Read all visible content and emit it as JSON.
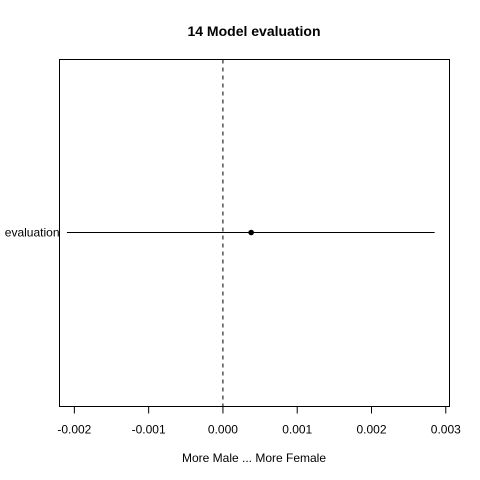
{
  "chart_data": {
    "type": "scatter",
    "title": "14 Model evaluation",
    "xlabel": "More Male ... More Female",
    "ylabel": "",
    "xlim": [
      -0.0022,
      0.00305
    ],
    "x_ticks": [
      -0.002,
      -0.001,
      0.0,
      0.001,
      0.002,
      0.003
    ],
    "x_tick_labels": [
      "-0.002",
      "-0.001",
      "0.000",
      "0.001",
      "0.002",
      "0.003"
    ],
    "reference_line_x": 0.0,
    "grid": false,
    "categories": [
      "evaluation"
    ],
    "series": [
      {
        "points": [
          {
            "category": "evaluation",
            "estimate": 0.00038,
            "ci_low": -0.0021,
            "ci_high": 0.00285
          }
        ]
      }
    ]
  }
}
